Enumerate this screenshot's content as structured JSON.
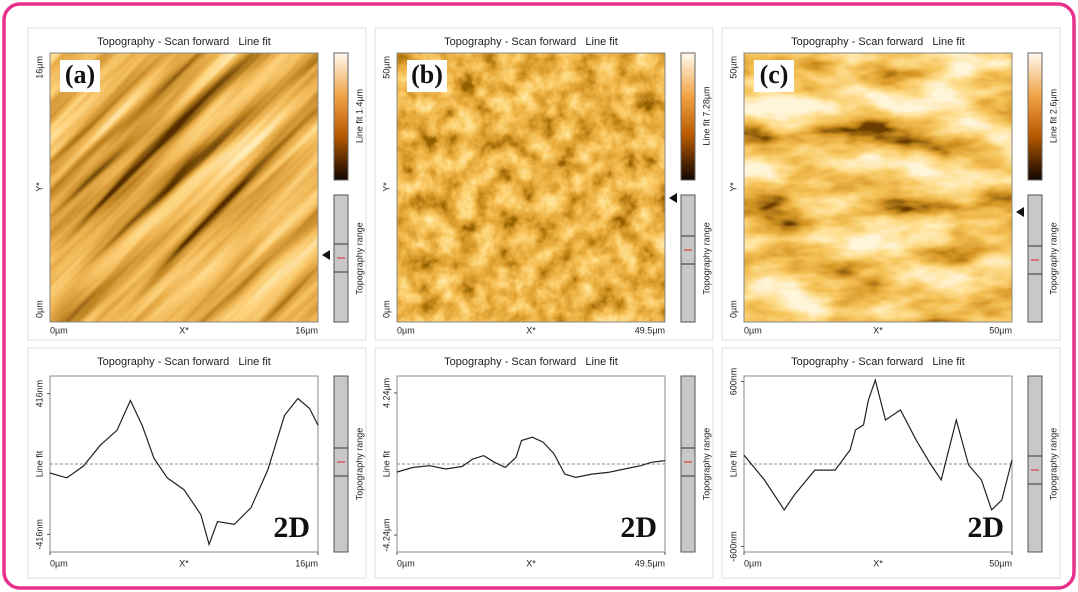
{
  "panels": [
    {
      "label": "(a)",
      "title": "Topography - Scan forward   Line fit",
      "y_ticks": [
        "16µm",
        "Y*",
        "0µm"
      ],
      "x_ticks": [
        "0µm",
        "X*",
        "16µm"
      ],
      "colorbar_label": "Line fit 1.4µm",
      "range_label": "Topography range"
    },
    {
      "label": "(b)",
      "title": "Topography - Scan forward   Line fit",
      "y_ticks": [
        "50µm",
        "Y*",
        "0µm"
      ],
      "x_ticks": [
        "0µm",
        "X*",
        "49.5µm"
      ],
      "colorbar_label": "Line fit 7.28µm",
      "range_label": "Topography range"
    },
    {
      "label": "(c)",
      "title": "Topography - Scan forward   Line fit",
      "y_ticks": [
        "50µm",
        "Y*",
        "0µm"
      ],
      "x_ticks": [
        "0µm",
        "X*",
        "50µm"
      ],
      "colorbar_label": "Line fit 2.6µm",
      "range_label": "Topography range"
    }
  ],
  "chart_data": [
    {
      "type": "line",
      "title": "Topography - Scan forward   Line fit",
      "y_label": "Line fit",
      "x_label": "X*",
      "annotation": "2D",
      "range_label": "Topography range",
      "color": "#222222",
      "zero_line": true,
      "x": [
        0,
        1,
        2,
        3,
        4,
        4.8,
        5.5,
        6.2,
        7,
        8,
        9,
        9.5,
        10,
        11,
        12,
        13,
        14,
        14.8,
        15.5,
        16
      ],
      "values": [
        -53,
        -82,
        -12,
        111,
        199,
        375,
        229,
        35,
        -82,
        -152,
        -299,
        -475,
        -340,
        -357,
        -258,
        -35,
        287,
        387,
        328,
        229
      ],
      "xlim": [
        0,
        16
      ],
      "xticks": [
        {
          "value": 0,
          "label": "0µm"
        },
        {
          "value": 16,
          "label": "16µm"
        }
      ],
      "ylim": [
        -520,
        520
      ],
      "yticks": [
        {
          "value": -416,
          "label": "-416nm"
        },
        {
          "value": 416,
          "label": "416nm"
        }
      ]
    },
    {
      "type": "line",
      "title": "Topography - Scan forward   Line fit",
      "y_label": "Line fit",
      "x_label": "X*",
      "annotation": "2D",
      "range_label": "Topography range",
      "color": "#222222",
      "zero_line": true,
      "x": [
        0,
        3,
        6,
        9,
        12,
        14,
        16,
        18,
        20,
        22,
        23,
        25,
        27,
        29,
        31,
        33,
        36,
        39,
        42,
        45,
        47,
        49.5
      ],
      "values": [
        -0.48,
        -0.2,
        -0.1,
        -0.3,
        -0.15,
        0.3,
        0.5,
        0.1,
        -0.2,
        0.4,
        1.4,
        1.6,
        1.3,
        0.6,
        -0.6,
        -0.8,
        -0.6,
        -0.5,
        -0.3,
        -0.1,
        0.1,
        0.2
      ],
      "xlim": [
        0,
        49.5
      ],
      "xticks": [
        {
          "value": 0,
          "label": "0µm"
        },
        {
          "value": 49.5,
          "label": "49.5µm"
        }
      ],
      "ylim": [
        -5.25,
        5.25
      ],
      "yticks": [
        {
          "value": -4.24,
          "label": "-4.24µm"
        },
        {
          "value": 4.24,
          "label": "4.24µm"
        }
      ]
    },
    {
      "type": "line",
      "title": "Topography - Scan forward   Line fit",
      "y_label": "Line fit",
      "x_label": "X*",
      "annotation": "2D",
      "range_label": "Topography range",
      "color": "#222222",
      "zero_line": true,
      "x": [
        0,
        3.8,
        7.5,
        9.4,
        13.2,
        17,
        19.8,
        20.8,
        22.3,
        23.2,
        24.5,
        26.4,
        29.2,
        32.1,
        34.9,
        36.8,
        39.6,
        41.9,
        44.3,
        46.2,
        48.1,
        50
      ],
      "values": [
        65,
        -116,
        -334,
        -225,
        -44,
        -44,
        102,
        247,
        284,
        465,
        610,
        320,
        393,
        175,
        -7,
        -116,
        320,
        -7,
        -116,
        -334,
        -262,
        29
      ],
      "xlim": [
        0,
        50
      ],
      "xticks": [
        {
          "value": 0,
          "label": "0µm"
        },
        {
          "value": 50,
          "label": "50µm"
        }
      ],
      "ylim": [
        -640,
        640
      ],
      "yticks": [
        {
          "value": -600,
          "label": "-600nm"
        },
        {
          "value": 600,
          "label": "600nm"
        }
      ]
    }
  ]
}
